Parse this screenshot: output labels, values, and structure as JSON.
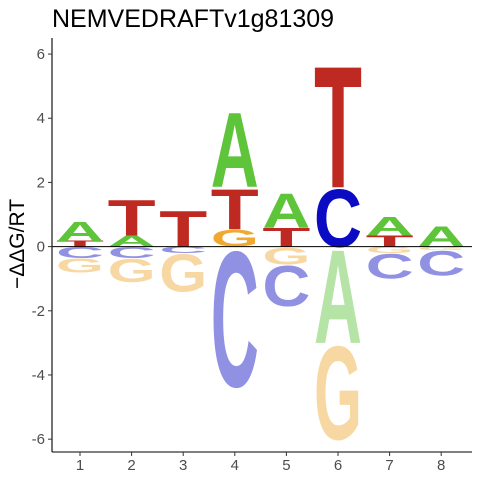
{
  "chart_data": {
    "type": "sequence-logo",
    "title": "NEMVEDRAFTv1g81309",
    "xlabel": "",
    "ylabel": "−ΔΔG/RT",
    "x_ticks": [
      "1",
      "2",
      "3",
      "4",
      "5",
      "6",
      "7",
      "8"
    ],
    "y_ticks": [
      "-6",
      "-4",
      "-2",
      "0",
      "2",
      "4",
      "6"
    ],
    "ylim": [
      -6.4,
      6.5
    ],
    "grid": false,
    "colors": {
      "A": "#5ec43a",
      "C": "#0b0bc4",
      "G": "#f0a830",
      "T": "#be2a22"
    },
    "positions": [
      {
        "x": 1,
        "positive": [
          {
            "base": "T",
            "height": 0.18
          },
          {
            "base": "A",
            "height": 0.62
          }
        ],
        "negative": [
          {
            "base": "C",
            "height": 0.35
          },
          {
            "base": "G",
            "height": 0.45
          }
        ]
      },
      {
        "x": 2,
        "positive": [
          {
            "base": "A",
            "height": 0.35
          },
          {
            "base": "T",
            "height": 1.15
          }
        ],
        "negative": [
          {
            "base": "C",
            "height": 0.35
          },
          {
            "base": "G",
            "height": 0.75
          }
        ]
      },
      {
        "x": 3,
        "positive": [
          {
            "base": "T",
            "height": 1.15
          }
        ],
        "negative": [
          {
            "base": "C",
            "height": 0.2
          },
          {
            "base": "G",
            "height": 1.2
          }
        ]
      },
      {
        "x": 4,
        "positive": [
          {
            "base": "G",
            "height": 0.55
          },
          {
            "base": "T",
            "height": 1.3
          },
          {
            "base": "A",
            "height": 2.4
          }
        ],
        "negative": [
          {
            "base": "C",
            "height": 4.35
          }
        ]
      },
      {
        "x": 5,
        "positive": [
          {
            "base": "T",
            "height": 0.6
          },
          {
            "base": "A",
            "height": 1.1
          }
        ],
        "negative": [
          {
            "base": "G",
            "height": 0.55
          },
          {
            "base": "C",
            "height": 1.3
          }
        ]
      },
      {
        "x": 6,
        "positive": [
          {
            "base": "C",
            "height": 1.85
          },
          {
            "base": "T",
            "height": 3.9
          }
        ],
        "negative": [
          {
            "base": "A",
            "height": 3.0
          },
          {
            "base": "G",
            "height": 3.0
          }
        ]
      },
      {
        "x": 7,
        "positive": [
          {
            "base": "T",
            "height": 0.35
          },
          {
            "base": "A",
            "height": 0.6
          }
        ],
        "negative": [
          {
            "base": "G",
            "height": 0.2
          },
          {
            "base": "C",
            "height": 0.8
          }
        ]
      },
      {
        "x": 8,
        "positive": [
          {
            "base": "A",
            "height": 0.65
          }
        ],
        "negative": [
          {
            "base": "G",
            "height": 0.1
          },
          {
            "base": "C",
            "height": 0.8
          }
        ]
      }
    ]
  }
}
